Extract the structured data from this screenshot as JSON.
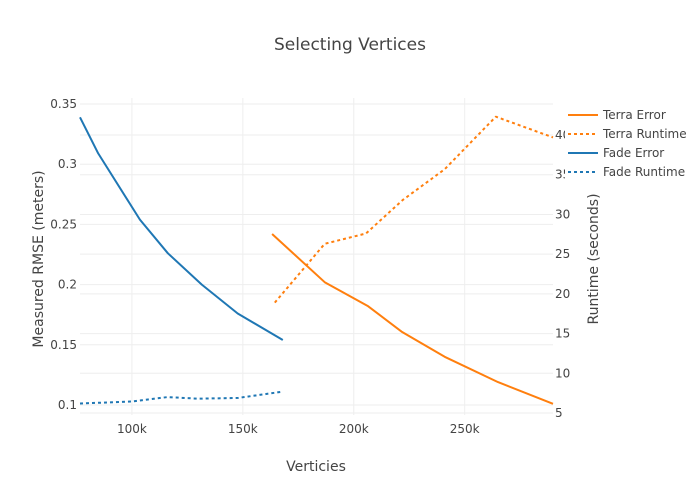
{
  "chart_data": {
    "type": "line",
    "title": "Selecting Vertices",
    "xlabel": "Verticies",
    "ylabel": "Measured RMSE (meters)",
    "y2label": "Runtime (seconds)",
    "xlim": [
      76600,
      289800
    ],
    "ylim": [
      0.0917,
      0.355
    ],
    "y2lim": [
      4.75,
      44.66
    ],
    "x_ticks": [
      {
        "value": 100000,
        "label": "100k"
      },
      {
        "value": 150000,
        "label": "150k"
      },
      {
        "value": 200000,
        "label": "200k"
      },
      {
        "value": 250000,
        "label": "250k"
      }
    ],
    "y_ticks": [
      {
        "value": 0.1,
        "label": "0.1"
      },
      {
        "value": 0.15,
        "label": "0.15"
      },
      {
        "value": 0.2,
        "label": "0.2"
      },
      {
        "value": 0.25,
        "label": "0.25"
      },
      {
        "value": 0.3,
        "label": "0.3"
      },
      {
        "value": 0.35,
        "label": "0.35"
      }
    ],
    "y2_ticks": [
      {
        "value": 5,
        "label": "5"
      },
      {
        "value": 10,
        "label": "10"
      },
      {
        "value": 15,
        "label": "15"
      },
      {
        "value": 20,
        "label": "20"
      },
      {
        "value": 25,
        "label": "25"
      },
      {
        "value": 30,
        "label": "30"
      },
      {
        "value": 35,
        "label": "35"
      },
      {
        "value": 40,
        "label": "40"
      }
    ],
    "grid": true,
    "legend_position": "top-right",
    "series": [
      {
        "name": "Terra Error",
        "axis": "y",
        "color": "#ff7f0e",
        "dash": "solid",
        "x": [
          163200,
          186900,
          206500,
          221500,
          241000,
          265000,
          289800
        ],
        "values": [
          0.242,
          0.202,
          0.182,
          0.161,
          0.14,
          0.119,
          0.101
        ]
      },
      {
        "name": "Terra Runtime",
        "axis": "y2",
        "color": "#ff7f0e",
        "dash": "dot",
        "x": [
          164400,
          186900,
          205500,
          222000,
          241000,
          264000,
          289800
        ],
        "values": [
          18.9,
          26.3,
          27.6,
          31.8,
          35.7,
          42.3,
          39.7
        ]
      },
      {
        "name": "Fade Error",
        "axis": "y",
        "color": "#1f77b4",
        "dash": "solid",
        "x": [
          76600,
          84800,
          103600,
          116200,
          131500,
          147700,
          168000
        ],
        "values": [
          0.339,
          0.309,
          0.254,
          0.226,
          0.2,
          0.176,
          0.154
        ]
      },
      {
        "name": "Fade Runtime",
        "axis": "y2",
        "color": "#1f77b4",
        "dash": "dot",
        "x": [
          76600,
          100000,
          116000,
          130000,
          148000,
          168000
        ],
        "values": [
          6.2,
          6.45,
          7.0,
          6.8,
          6.9,
          7.7
        ]
      }
    ]
  }
}
